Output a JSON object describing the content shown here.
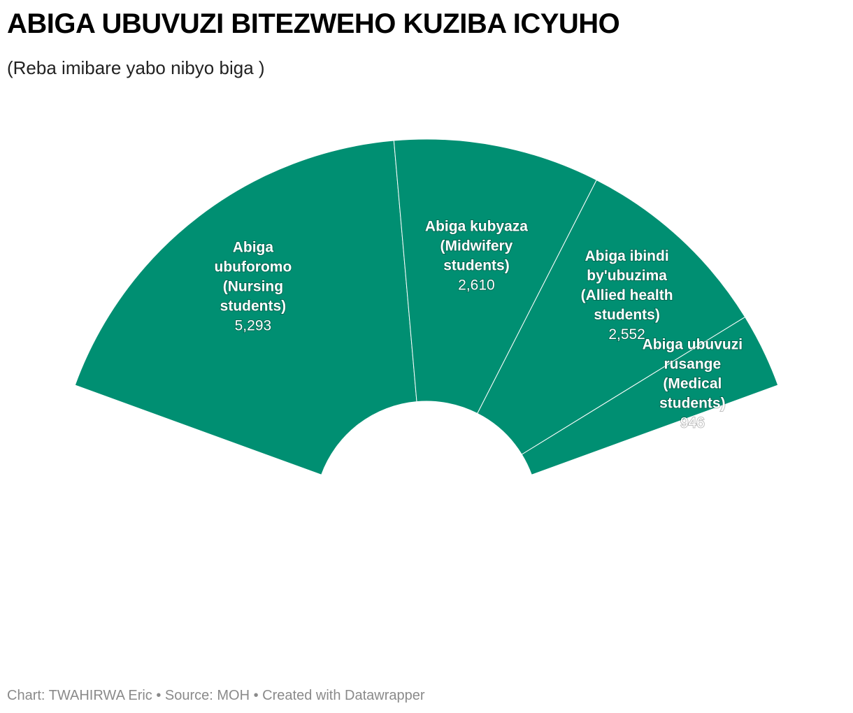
{
  "header": {
    "title": "ABIGA UBUVUZI BITEZWEHO KUZIBA ICYUHO",
    "subtitle": "(Reba imibare yabo nibyo biga )"
  },
  "footer": {
    "credit": "Chart: TWAHIRWA Eric • Source: MOH • Created with Datawrapper"
  },
  "colors": {
    "slice": "#008f72",
    "separator": "#ffffff"
  },
  "chart_data": {
    "type": "pie",
    "variant": "semi-donut",
    "title": "ABIGA UBUVUZI BITEZWEHO KUZIBA ICYUHO",
    "subtitle": "(Reba imibare yabo nibyo biga )",
    "slices": [
      {
        "label_lines": [
          "Abiga",
          "ubuforomo",
          "(Nursing",
          "students)"
        ],
        "value": 5293,
        "value_label": "5,293"
      },
      {
        "label_lines": [
          "Abiga kubyaza",
          "(Midwifery",
          "students)"
        ],
        "value": 2610,
        "value_label": "2,610"
      },
      {
        "label_lines": [
          "Abiga ibindi",
          "by'ubuzima",
          "(Allied health",
          "students)"
        ],
        "value": 2552,
        "value_label": "2,552"
      },
      {
        "label_lines": [
          "Abiga ubuvuzi",
          "rusange",
          "(Medical",
          "students)"
        ],
        "value": 946,
        "value_label": "946"
      }
    ]
  }
}
